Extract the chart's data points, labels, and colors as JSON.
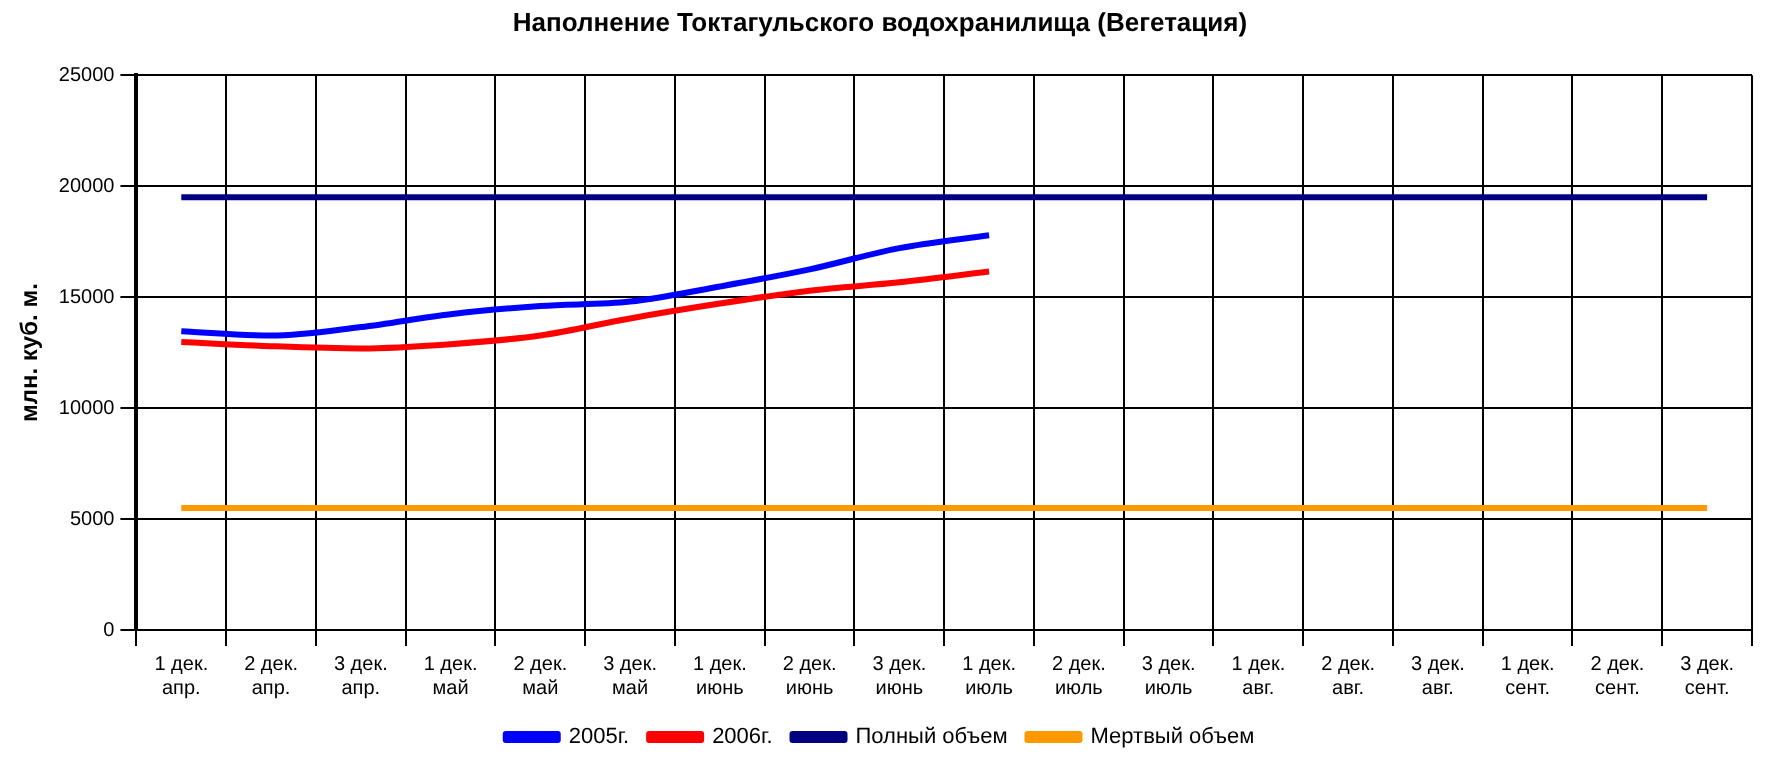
{
  "chart_data": {
    "type": "line",
    "title": "Наполнение Токтагульского водохранилища (Вегетация)",
    "ylabel": "млн. куб. м.",
    "categories": [
      "1 дек.\nапр.",
      "2 дек.\nапр.",
      "3 дек.\nапр.",
      "1 дек.\nмай",
      "2 дек.\nмай",
      "3 дек.\nмай",
      "1 дек.\nиюнь",
      "2 дек.\nиюнь",
      "3 дек.\nиюнь",
      "1 дек.\nиюль",
      "2 дек.\nиюль",
      "3 дек.\nиюль",
      "1 дек.\nавг.",
      "2 дек.\nавг.",
      "3 дек.\nавг.",
      "1 дек.\nсент.",
      "2 дек.\nсент.",
      "3 дек.\nсент."
    ],
    "series": [
      {
        "name": "2005г.",
        "color": "#0000ff",
        "values": [
          13460,
          13270,
          13650,
          14230,
          14600,
          14800,
          15480,
          16250,
          17210,
          17790,
          null,
          null,
          null,
          null,
          null,
          null,
          null,
          null
        ]
      },
      {
        "name": "2006г.",
        "color": "#ff0000",
        "values": [
          12980,
          12790,
          12690,
          12880,
          13270,
          14040,
          14710,
          15290,
          15670,
          16150,
          null,
          null,
          null,
          null,
          null,
          null,
          null,
          null
        ]
      },
      {
        "name": "Полный объем",
        "color": "#000080",
        "values": [
          19500,
          19500,
          19500,
          19500,
          19500,
          19500,
          19500,
          19500,
          19500,
          19500,
          19500,
          19500,
          19500,
          19500,
          19500,
          19500,
          19500,
          19500
        ]
      },
      {
        "name": "Мертвый объем",
        "color": "#ff9900",
        "values": [
          5500,
          5500,
          5500,
          5500,
          5500,
          5500,
          5500,
          5500,
          5500,
          5500,
          5500,
          5500,
          5500,
          5500,
          5500,
          5500,
          5500,
          5500
        ]
      }
    ],
    "ylim": [
      0,
      25000
    ],
    "yticks": [
      0,
      5000,
      10000,
      15000,
      20000,
      25000
    ],
    "grid": true,
    "legend": "bottom",
    "marker": "none",
    "line_style": "solid"
  }
}
